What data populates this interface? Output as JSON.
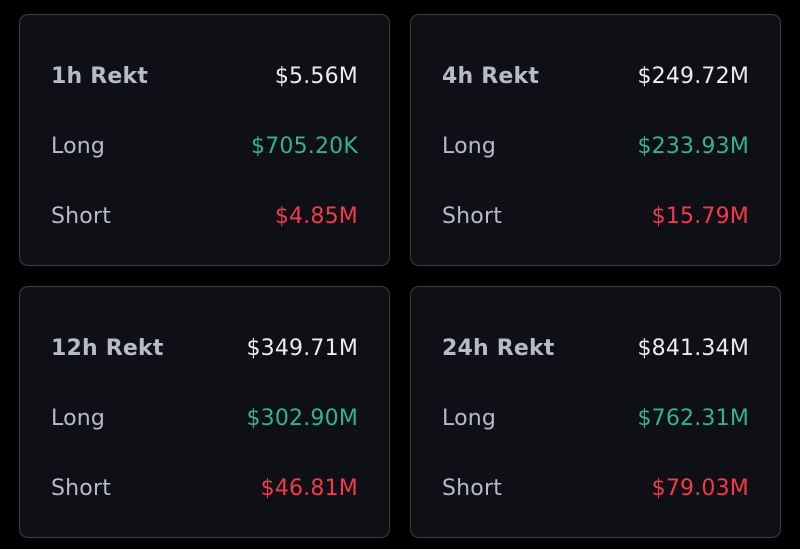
{
  "colors": {
    "background": "#000000",
    "card_background": "#0e1015",
    "card_border": "#3a3d44",
    "label": "#b8bbc2",
    "total_value": "#e9ebef",
    "long_value": "#33b389",
    "short_value": "#f23a4c"
  },
  "cards": [
    {
      "title": "1h Rekt",
      "total": "$5.56M",
      "long_label": "Long",
      "long": "$705.20K",
      "short_label": "Short",
      "short": "$4.85M"
    },
    {
      "title": "4h Rekt",
      "total": "$249.72M",
      "long_label": "Long",
      "long": "$233.93M",
      "short_label": "Short",
      "short": "$15.79M"
    },
    {
      "title": "12h Rekt",
      "total": "$349.71M",
      "long_label": "Long",
      "long": "$302.90M",
      "short_label": "Short",
      "short": "$46.81M"
    },
    {
      "title": "24h Rekt",
      "total": "$841.34M",
      "long_label": "Long",
      "long": "$762.31M",
      "short_label": "Short",
      "short": "$79.03M"
    }
  ]
}
